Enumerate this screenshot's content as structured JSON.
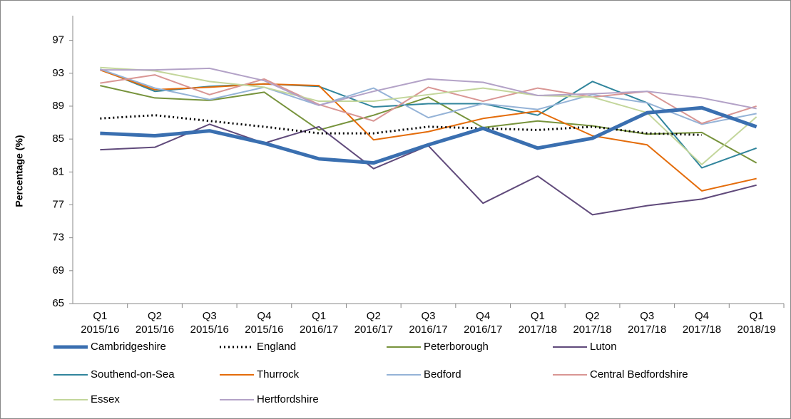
{
  "chart_data": {
    "type": "line",
    "y_label": "Percentage (%)",
    "categories": [
      "Q1 2015/16",
      "Q2 2015/16",
      "Q3 2015/16",
      "Q4 2015/16",
      "Q1 2016/17",
      "Q2 2016/17",
      "Q3 2016/17",
      "Q4 2016/17",
      "Q1 2017/18",
      "Q2 2017/18",
      "Q3 2017/18",
      "Q4 2017/18",
      "Q1 2018/19"
    ],
    "ylim": [
      65,
      100
    ],
    "yticks": [
      65,
      69,
      73,
      77,
      81,
      85,
      89,
      93,
      97
    ],
    "grid": false,
    "legend": "bottom",
    "series": [
      {
        "name": "Cambridgeshire",
        "color": "#3a6fb0",
        "width": 5,
        "dash": "none",
        "values": [
          85.7,
          85.4,
          86.0,
          84.5,
          82.6,
          82.1,
          84.3,
          86.3,
          83.9,
          85.1,
          88.2,
          88.8,
          86.5
        ]
      },
      {
        "name": "England",
        "color": "#000000",
        "width": 3,
        "dash": "dotted",
        "values": [
          87.5,
          87.9,
          87.2,
          86.5,
          85.7,
          85.7,
          86.5,
          86.3,
          86.1,
          86.5,
          85.7,
          85.5,
          null
        ]
      },
      {
        "name": "Peterborough",
        "color": "#77933c",
        "width": 2,
        "dash": "none",
        "values": [
          91.5,
          90.0,
          89.7,
          90.7,
          86.1,
          87.9,
          90.1,
          86.4,
          87.2,
          86.6,
          85.6,
          85.8,
          82.1
        ]
      },
      {
        "name": "Luton",
        "color": "#604a7b",
        "width": 2,
        "dash": "none",
        "values": [
          83.7,
          84.0,
          86.8,
          84.5,
          86.5,
          81.4,
          84.2,
          77.2,
          80.5,
          75.8,
          76.9,
          77.7,
          79.4
        ]
      },
      {
        "name": "Southend-on-Sea",
        "color": "#31859c",
        "width": 2,
        "dash": "none",
        "values": [
          93.5,
          90.8,
          91.4,
          91.7,
          91.4,
          88.9,
          89.3,
          89.3,
          87.9,
          92.0,
          89.4,
          81.5,
          83.9
        ]
      },
      {
        "name": "Thurrock",
        "color": "#e46c0a",
        "width": 2,
        "dash": "none",
        "values": [
          93.4,
          91.0,
          91.3,
          91.7,
          91.5,
          84.9,
          85.9,
          87.5,
          88.4,
          85.4,
          84.3,
          78.7,
          80.2
        ]
      },
      {
        "name": "Bedford",
        "color": "#95b3d7",
        "width": 2,
        "dash": "none",
        "values": [
          93.5,
          91.2,
          89.8,
          91.3,
          89.1,
          91.2,
          87.6,
          89.3,
          88.6,
          90.4,
          89.4,
          86.8,
          88.1
        ]
      },
      {
        "name": "Central Bedfordshire",
        "color": "#d99694",
        "width": 2,
        "dash": "none",
        "values": [
          91.8,
          92.8,
          90.4,
          92.3,
          89.2,
          87.2,
          91.3,
          89.6,
          91.2,
          90.1,
          90.8,
          86.9,
          89.0
        ]
      },
      {
        "name": "Essex",
        "color": "#c3d69b",
        "width": 2,
        "dash": "none",
        "values": [
          93.7,
          93.3,
          92.0,
          91.3,
          89.6,
          89.6,
          90.4,
          91.2,
          90.3,
          90.1,
          88.2,
          81.9,
          87.7
        ]
      },
      {
        "name": "Hertfordshire",
        "color": "#b3a2c7",
        "width": 2,
        "dash": "none",
        "values": [
          93.4,
          93.4,
          93.6,
          92.1,
          89.1,
          90.8,
          92.3,
          91.9,
          90.3,
          90.5,
          90.8,
          90.0,
          88.7
        ]
      }
    ]
  }
}
